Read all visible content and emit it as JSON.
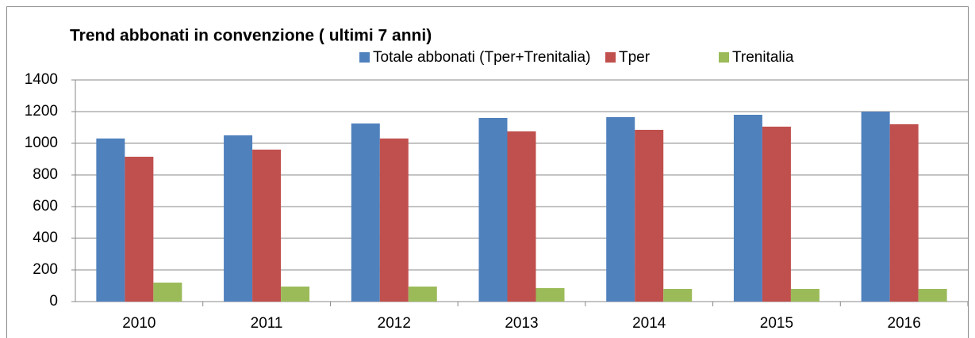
{
  "chart_data": {
    "type": "bar",
    "title": "Trend abbonati in convenzione  ( ultimi 7 anni)",
    "categories": [
      "2010",
      "2011",
      "2012",
      "2013",
      "2014",
      "2015",
      "2016"
    ],
    "series": [
      {
        "name": "Totale abbonati (Tper+Trenitalia)",
        "color": "#4f81bd",
        "values": [
          1030,
          1050,
          1125,
          1160,
          1165,
          1180,
          1200
        ]
      },
      {
        "name": "Tper",
        "color": "#c0504d",
        "values": [
          915,
          960,
          1030,
          1075,
          1085,
          1105,
          1120
        ]
      },
      {
        "name": "Trenitalia",
        "color": "#9bbb59",
        "values": [
          120,
          95,
          95,
          85,
          80,
          80,
          80
        ]
      }
    ],
    "ylim": [
      0,
      1400
    ],
    "yticks": [
      0,
      200,
      400,
      600,
      800,
      1000,
      1200,
      1400
    ],
    "grid": true,
    "legend": "top"
  }
}
